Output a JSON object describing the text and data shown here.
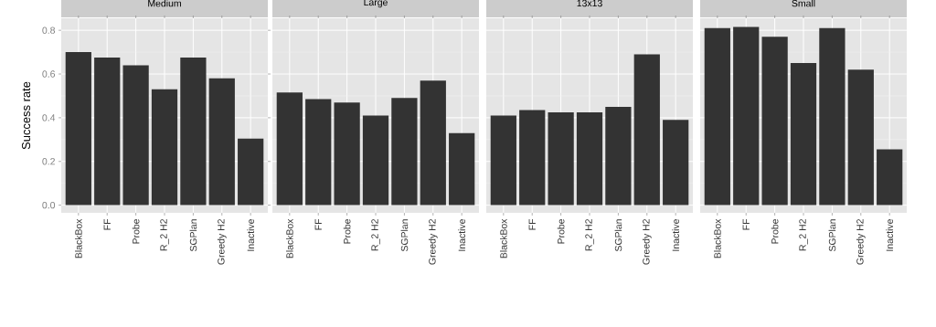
{
  "chart_data": [
    {
      "type": "bar",
      "title": "Medium",
      "ylabel": "Success rate",
      "categories": [
        "BlackBox",
        "FF",
        "Probe",
        "R_2 H2",
        "SGPlan",
        "Greedy H2",
        "Inactive"
      ],
      "values": [
        0.7,
        0.675,
        0.64,
        0.53,
        0.675,
        0.58,
        0.305
      ],
      "color": "#333333",
      "ylim": [
        -0.035,
        0.855
      ],
      "yticks": [
        {
          "value": 0,
          "label": "0.0"
        },
        {
          "value": 0.2,
          "label": "0.2"
        },
        {
          "value": 0.4,
          "label": "0.4"
        },
        {
          "value": 0.6,
          "label": "0.6"
        },
        {
          "value": 0.8,
          "label": "0.8"
        }
      ],
      "grid": true
    },
    {
      "type": "bar",
      "title": "Large",
      "categories": [
        "BlackBox",
        "FF",
        "Probe",
        "R_2 H2",
        "SGPlan",
        "Greedy H2",
        "Inactive"
      ],
      "values": [
        0.515,
        0.485,
        0.47,
        0.41,
        0.49,
        0.57,
        0.33
      ],
      "color": "#333333",
      "ylim": [
        -0.035,
        0.855
      ],
      "yticks": [
        0,
        0.2,
        0.4,
        0.6,
        0.8
      ],
      "grid": true,
      "tick_labels": "x"
    },
    {
      "type": "bar",
      "title": "13x13",
      "categories": [
        "BlackBox",
        "FF",
        "Probe",
        "R_2 H2",
        "SGPlan",
        "Greedy H2",
        "Inactive"
      ],
      "values": [
        0.41,
        0.435,
        0.425,
        0.425,
        0.45,
        0.69,
        0.39
      ],
      "color": "#333333",
      "ylim": [
        -0.035,
        0.855
      ],
      "yticks": [
        0,
        0.2,
        0.4,
        0.6,
        0.8
      ],
      "grid": true,
      "tick_labels": "x"
    },
    {
      "type": "bar",
      "title": "Small",
      "categories": [
        "BlackBox",
        "FF",
        "Probe",
        "R_2 H2",
        "SGPlan",
        "Greedy H2",
        "Inactive"
      ],
      "values": [
        0.81,
        0.815,
        0.77,
        0.65,
        0.81,
        0.62,
        0.255
      ],
      "color": "#333333",
      "ylim": [
        -0.035,
        0.855
      ],
      "yticks": [
        0,
        0.2,
        0.4,
        0.6,
        0.8
      ],
      "grid": true,
      "tick_labels": "x"
    }
  ]
}
